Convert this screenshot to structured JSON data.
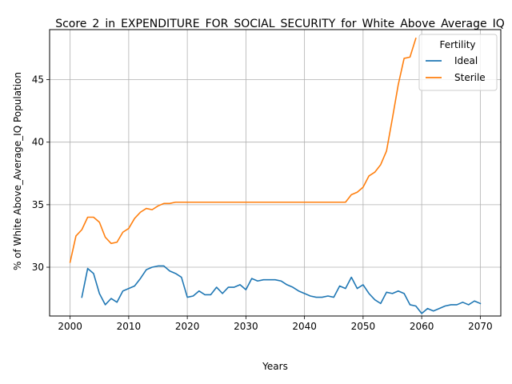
{
  "chart_data": {
    "type": "line",
    "title": "Score_2_in_EXPENDITURE_FOR_SOCIAL_SECURITY_for_White_Above_Average_IQ",
    "xlabel": "Years",
    "ylabel": "% of White Above_Average_IQ Population",
    "xlim": [
      1996.5,
      2073.5
    ],
    "ylim": [
      26.1,
      49.0
    ],
    "xticks": [
      2000,
      2010,
      2020,
      2030,
      2040,
      2050,
      2060,
      2070
    ],
    "yticks": [
      30,
      35,
      40,
      45
    ],
    "grid": true,
    "legend": {
      "title": "Fertility",
      "placement": "top-right"
    },
    "series": [
      {
        "name": "Ideal",
        "color": "#1f77b4",
        "x": [
          2002,
          2003,
          2004,
          2005,
          2006,
          2007,
          2008,
          2009,
          2010,
          2011,
          2012,
          2013,
          2014,
          2015,
          2016,
          2017,
          2018,
          2019,
          2020,
          2021,
          2022,
          2023,
          2024,
          2025,
          2026,
          2027,
          2028,
          2029,
          2030,
          2031,
          2032,
          2033,
          2034,
          2035,
          2036,
          2037,
          2038,
          2039,
          2040,
          2041,
          2042,
          2043,
          2044,
          2045,
          2046,
          2047,
          2048,
          2049,
          2050,
          2051,
          2052,
          2053,
          2054,
          2055,
          2056,
          2057,
          2058,
          2059,
          2060,
          2061,
          2062,
          2063,
          2064,
          2065,
          2066,
          2067,
          2068,
          2069,
          2070
        ],
        "values": [
          27.6,
          29.9,
          29.5,
          27.9,
          27.0,
          27.5,
          27.2,
          28.1,
          28.3,
          28.5,
          29.1,
          29.8,
          30.0,
          30.1,
          30.1,
          29.7,
          29.5,
          29.2,
          27.6,
          27.7,
          28.1,
          27.8,
          27.8,
          28.4,
          27.9,
          28.4,
          28.4,
          28.6,
          28.2,
          29.1,
          28.9,
          29.0,
          29.0,
          29.0,
          28.9,
          28.6,
          28.4,
          28.1,
          27.9,
          27.7,
          27.6,
          27.6,
          27.7,
          27.6,
          28.5,
          28.3,
          29.2,
          28.3,
          28.6,
          27.9,
          27.4,
          27.1,
          28.0,
          27.9,
          28.1,
          27.9,
          27.0,
          26.9,
          26.3,
          26.7,
          26.5,
          26.7,
          26.9,
          27.0,
          27.0,
          27.2,
          27.0,
          27.3,
          27.1
        ]
      },
      {
        "name": "Sterile",
        "color": "#ff7f0e",
        "x": [
          2000,
          2001,
          2002,
          2003,
          2004,
          2005,
          2006,
          2007,
          2008,
          2009,
          2010,
          2011,
          2012,
          2013,
          2014,
          2015,
          2016,
          2017,
          2018,
          2019,
          2020,
          2021,
          2022,
          2023,
          2024,
          2025,
          2026,
          2027,
          2028,
          2029,
          2030,
          2031,
          2032,
          2033,
          2034,
          2035,
          2036,
          2037,
          2038,
          2039,
          2040,
          2041,
          2042,
          2043,
          2044,
          2045,
          2046,
          2047,
          2048,
          2049,
          2050,
          2051,
          2052,
          2053,
          2054,
          2055,
          2056,
          2057,
          2058,
          2059
        ],
        "values": [
          30.4,
          32.5,
          33.0,
          34.0,
          34.0,
          33.6,
          32.4,
          31.9,
          32.0,
          32.8,
          33.1,
          33.9,
          34.4,
          34.7,
          34.6,
          34.9,
          35.1,
          35.1,
          35.2,
          35.2,
          35.2,
          35.2,
          35.2,
          35.2,
          35.2,
          35.2,
          35.2,
          35.2,
          35.2,
          35.2,
          35.2,
          35.2,
          35.2,
          35.2,
          35.2,
          35.2,
          35.2,
          35.2,
          35.2,
          35.2,
          35.2,
          35.2,
          35.2,
          35.2,
          35.2,
          35.2,
          35.2,
          35.2,
          35.8,
          36.0,
          36.4,
          37.3,
          37.6,
          38.2,
          39.3,
          41.9,
          44.6,
          46.7,
          46.8,
          48.3
        ]
      }
    ]
  }
}
